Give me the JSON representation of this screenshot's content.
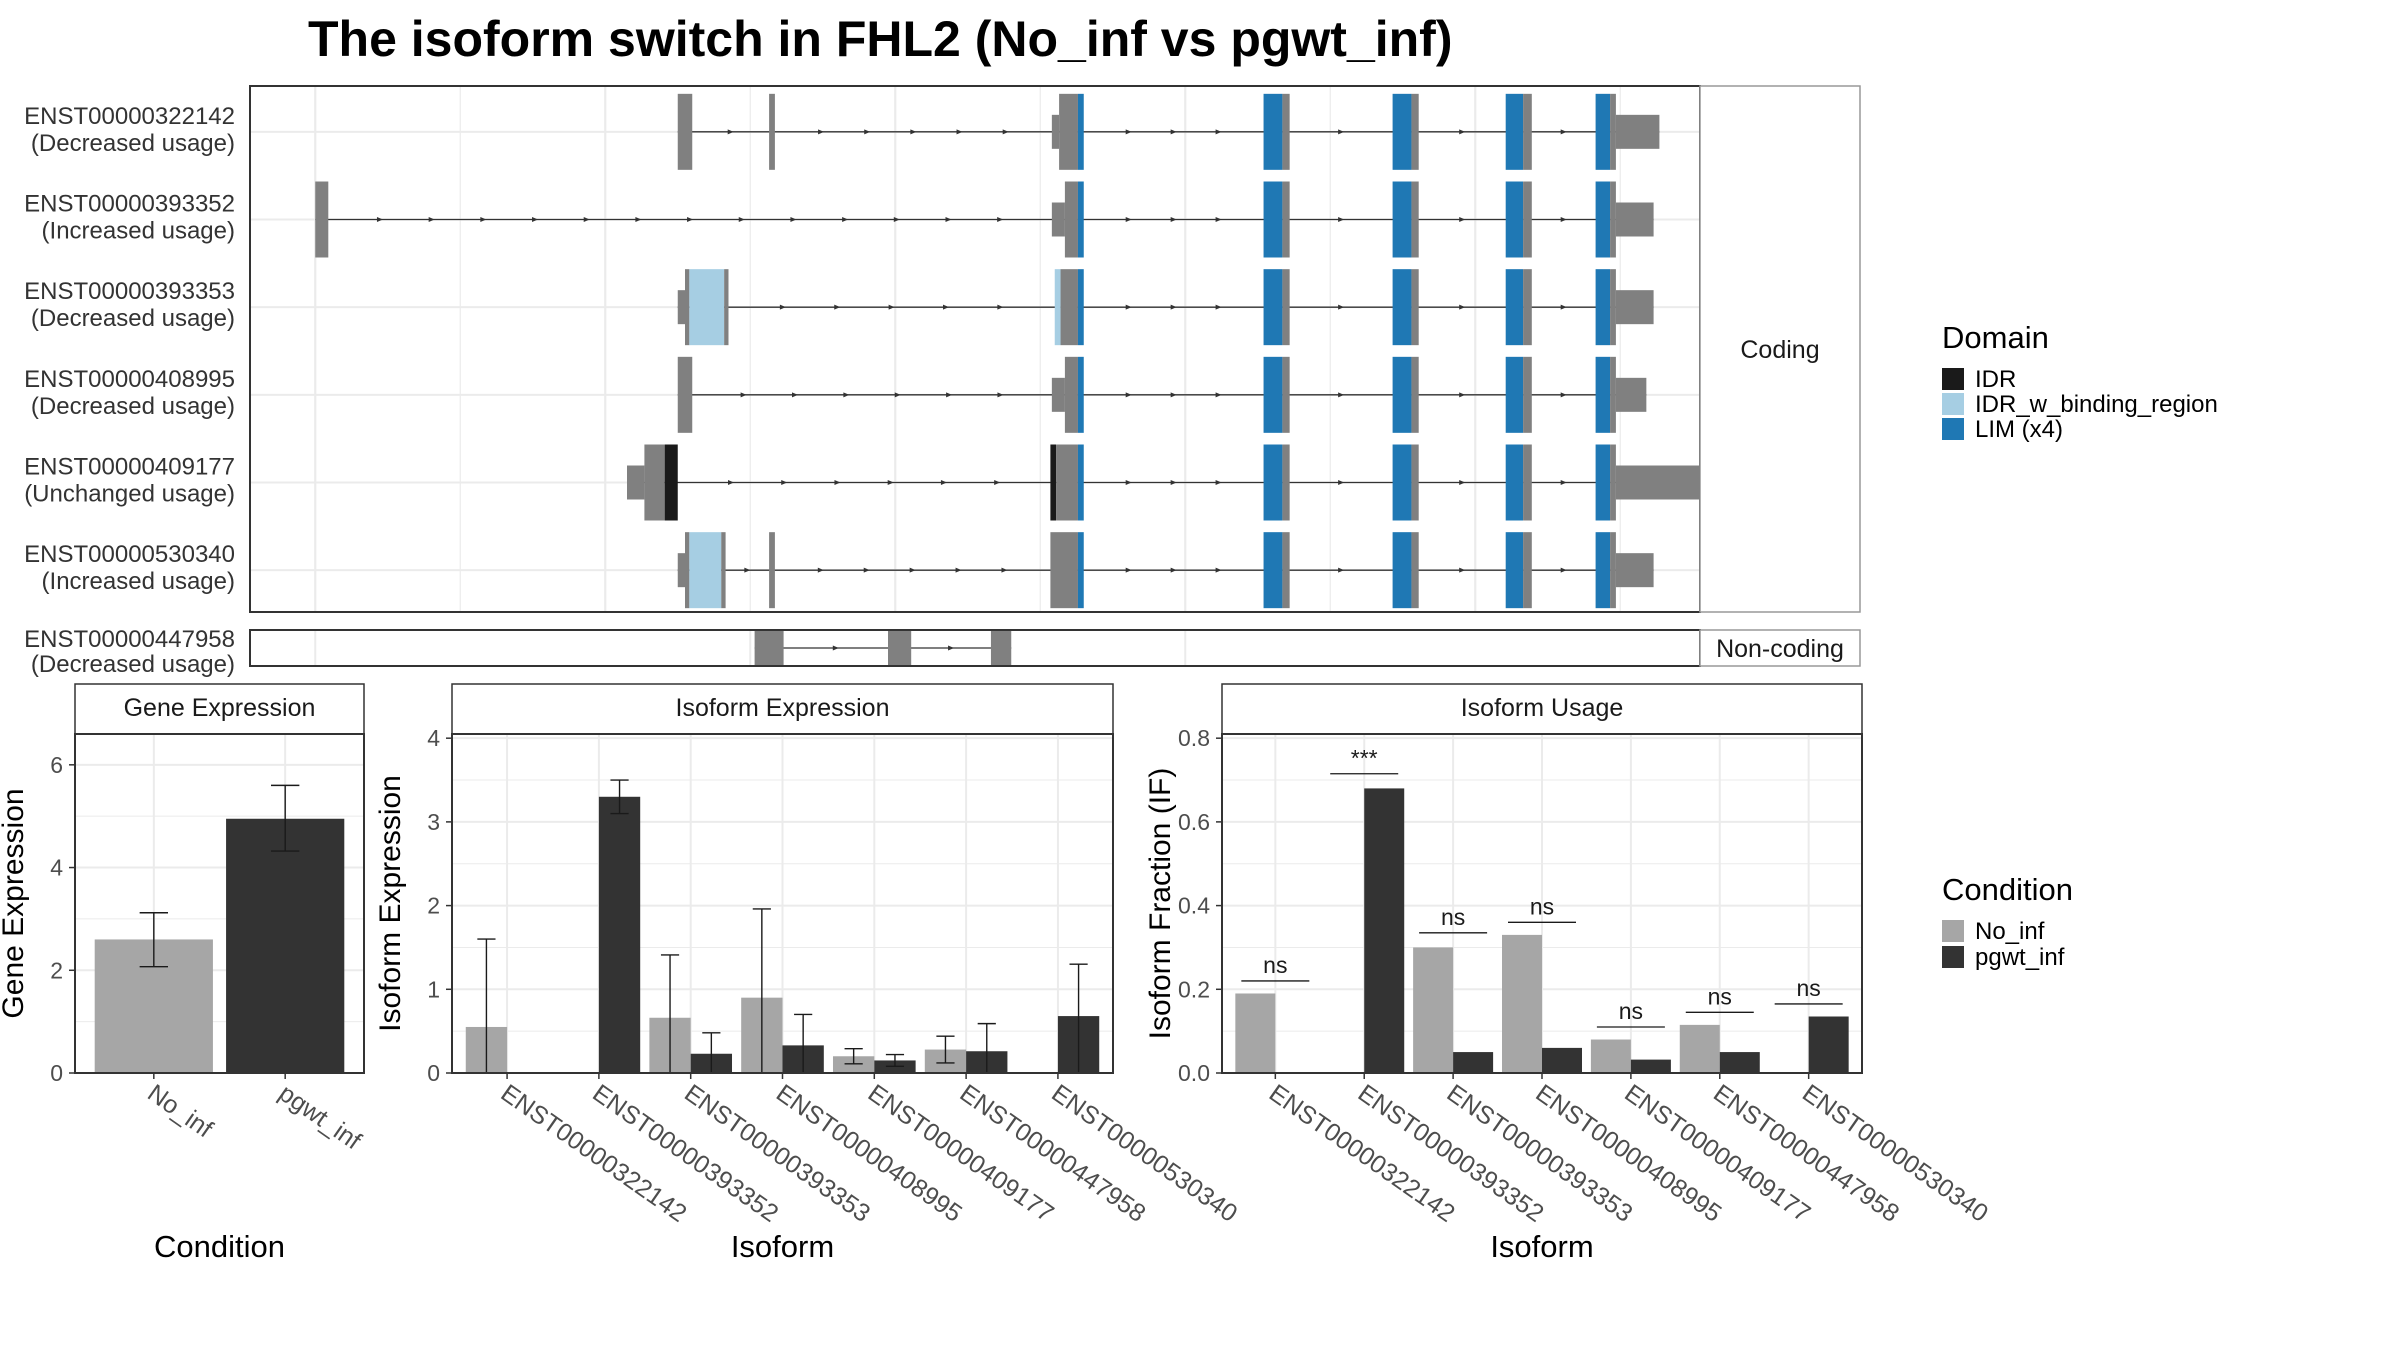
{
  "title": "The isoform switch in FHL2 (No_inf vs pgwt_inf)",
  "colors": {
    "exon": "#808080",
    "IDR": "#1a1a1a",
    "IDR_w_binding_region": "#a6cee3",
    "LIM (x4)": "#1f78b4",
    "No_inf": "#a6a6a6",
    "pgwt_inf": "#333333",
    "grid": "#ebebeb",
    "panel_border": "#333333",
    "strip_border": "#999999"
  },
  "chart_data": [
    {
      "type": "gene-structure",
      "facets": [
        "Coding",
        "Non-coding"
      ],
      "transcripts": [
        {
          "id": "ENST00000322142",
          "usage": "(Decreased usage)",
          "facet": "Coding",
          "exons": [
            [
              0.295,
              0.305,
              "exon",
              "full"
            ],
            [
              0.358,
              0.362,
              "exon",
              "full"
            ],
            [
              0.558,
              0.571,
              "exon",
              "full"
            ],
            [
              0.571,
              0.575,
              "LIM (x4)",
              "full"
            ],
            [
              0.699,
              0.712,
              "LIM (x4)",
              "full"
            ],
            [
              0.712,
              0.717,
              "exon",
              "full"
            ],
            [
              0.788,
              0.801,
              "LIM (x4)",
              "full"
            ],
            [
              0.801,
              0.806,
              "exon",
              "full"
            ],
            [
              0.866,
              0.878,
              "LIM (x4)",
              "full"
            ],
            [
              0.878,
              0.884,
              "exon",
              "full"
            ],
            [
              0.928,
              0.938,
              "LIM (x4)",
              "full"
            ],
            [
              0.938,
              0.942,
              "exon",
              "full"
            ],
            [
              0.942,
              0.972,
              "exon",
              "utr"
            ],
            [
              0.553,
              0.558,
              "exon",
              "utr"
            ]
          ]
        },
        {
          "id": "ENST00000393352",
          "usage": "(Increased usage)",
          "facet": "Coding",
          "exons": [
            [
              0.045,
              0.054,
              "exon",
              "full"
            ],
            [
              0.562,
              0.571,
              "exon",
              "full"
            ],
            [
              0.571,
              0.575,
              "LIM (x4)",
              "full"
            ],
            [
              0.699,
              0.712,
              "LIM (x4)",
              "full"
            ],
            [
              0.712,
              0.717,
              "exon",
              "full"
            ],
            [
              0.788,
              0.801,
              "LIM (x4)",
              "full"
            ],
            [
              0.801,
              0.806,
              "exon",
              "full"
            ],
            [
              0.866,
              0.878,
              "LIM (x4)",
              "full"
            ],
            [
              0.878,
              0.884,
              "exon",
              "full"
            ],
            [
              0.928,
              0.938,
              "LIM (x4)",
              "full"
            ],
            [
              0.938,
              0.942,
              "exon",
              "full"
            ],
            [
              0.942,
              0.968,
              "exon",
              "utr"
            ],
            [
              0.553,
              0.562,
              "exon",
              "utr"
            ]
          ]
        },
        {
          "id": "ENST00000393353",
          "usage": "(Decreased usage)",
          "facet": "Coding",
          "exons": [
            [
              0.295,
              0.3,
              "exon",
              "utr"
            ],
            [
              0.3,
              0.303,
              "exon",
              "full"
            ],
            [
              0.303,
              0.327,
              "IDR_w_binding_region",
              "full"
            ],
            [
              0.327,
              0.33,
              "exon",
              "full"
            ],
            [
              0.555,
              0.559,
              "IDR_w_binding_region",
              "full"
            ],
            [
              0.559,
              0.571,
              "exon",
              "full"
            ],
            [
              0.571,
              0.575,
              "LIM (x4)",
              "full"
            ],
            [
              0.699,
              0.712,
              "LIM (x4)",
              "full"
            ],
            [
              0.712,
              0.717,
              "exon",
              "full"
            ],
            [
              0.788,
              0.801,
              "LIM (x4)",
              "full"
            ],
            [
              0.801,
              0.806,
              "exon",
              "full"
            ],
            [
              0.866,
              0.878,
              "LIM (x4)",
              "full"
            ],
            [
              0.878,
              0.884,
              "exon",
              "full"
            ],
            [
              0.928,
              0.938,
              "LIM (x4)",
              "full"
            ],
            [
              0.938,
              0.942,
              "exon",
              "full"
            ],
            [
              0.942,
              0.968,
              "exon",
              "utr"
            ]
          ]
        },
        {
          "id": "ENST00000408995",
          "usage": "(Decreased usage)",
          "facet": "Coding",
          "exons": [
            [
              0.295,
              0.305,
              "exon",
              "full"
            ],
            [
              0.553,
              0.562,
              "exon",
              "utr"
            ],
            [
              0.562,
              0.571,
              "exon",
              "full"
            ],
            [
              0.571,
              0.575,
              "LIM (x4)",
              "full"
            ],
            [
              0.699,
              0.712,
              "LIM (x4)",
              "full"
            ],
            [
              0.712,
              0.717,
              "exon",
              "full"
            ],
            [
              0.788,
              0.801,
              "LIM (x4)",
              "full"
            ],
            [
              0.801,
              0.806,
              "exon",
              "full"
            ],
            [
              0.866,
              0.878,
              "LIM (x4)",
              "full"
            ],
            [
              0.878,
              0.884,
              "exon",
              "full"
            ],
            [
              0.928,
              0.938,
              "LIM (x4)",
              "full"
            ],
            [
              0.938,
              0.942,
              "exon",
              "full"
            ],
            [
              0.942,
              0.963,
              "exon",
              "utr"
            ]
          ]
        },
        {
          "id": "ENST00000409177",
          "usage": "(Unchanged usage)",
          "facet": "Coding",
          "exons": [
            [
              0.26,
              0.272,
              "exon",
              "utr"
            ],
            [
              0.272,
              0.286,
              "exon",
              "full"
            ],
            [
              0.286,
              0.295,
              "IDR",
              "full"
            ],
            [
              0.552,
              0.556,
              "IDR",
              "full"
            ],
            [
              0.556,
              0.571,
              "exon",
              "full"
            ],
            [
              0.571,
              0.575,
              "LIM (x4)",
              "full"
            ],
            [
              0.699,
              0.712,
              "LIM (x4)",
              "full"
            ],
            [
              0.712,
              0.717,
              "exon",
              "full"
            ],
            [
              0.788,
              0.801,
              "LIM (x4)",
              "full"
            ],
            [
              0.801,
              0.806,
              "exon",
              "full"
            ],
            [
              0.866,
              0.878,
              "LIM (x4)",
              "full"
            ],
            [
              0.878,
              0.884,
              "exon",
              "full"
            ],
            [
              0.928,
              0.938,
              "LIM (x4)",
              "full"
            ],
            [
              0.938,
              0.942,
              "exon",
              "full"
            ],
            [
              0.942,
              1.024,
              "exon",
              "utr"
            ]
          ]
        },
        {
          "id": "ENST00000530340",
          "usage": "(Increased usage)",
          "facet": "Coding",
          "exons": [
            [
              0.295,
              0.3,
              "exon",
              "utr"
            ],
            [
              0.3,
              0.303,
              "exon",
              "full"
            ],
            [
              0.303,
              0.325,
              "IDR_w_binding_region",
              "full"
            ],
            [
              0.325,
              0.328,
              "exon",
              "full"
            ],
            [
              0.358,
              0.362,
              "exon",
              "full"
            ],
            [
              0.552,
              0.571,
              "exon",
              "full"
            ],
            [
              0.571,
              0.575,
              "LIM (x4)",
              "full"
            ],
            [
              0.699,
              0.712,
              "LIM (x4)",
              "full"
            ],
            [
              0.712,
              0.717,
              "exon",
              "full"
            ],
            [
              0.788,
              0.801,
              "LIM (x4)",
              "full"
            ],
            [
              0.801,
              0.806,
              "exon",
              "full"
            ],
            [
              0.866,
              0.878,
              "LIM (x4)",
              "full"
            ],
            [
              0.878,
              0.884,
              "exon",
              "full"
            ],
            [
              0.928,
              0.938,
              "LIM (x4)",
              "full"
            ],
            [
              0.938,
              0.942,
              "exon",
              "full"
            ],
            [
              0.942,
              0.968,
              "exon",
              "utr"
            ]
          ]
        },
        {
          "id": "ENST00000447958",
          "usage": "(Decreased usage)",
          "facet": "Non-coding",
          "exons": [
            [
              0.348,
              0.368,
              "exon",
              "full"
            ],
            [
              0.44,
              0.456,
              "exon",
              "full"
            ],
            [
              0.511,
              0.525,
              "exon",
              "full"
            ]
          ]
        }
      ],
      "legend": {
        "title": "Domain",
        "items": [
          "IDR",
          "IDR_w_binding_region",
          "LIM (x4)"
        ]
      }
    },
    {
      "type": "bar",
      "panel": "Gene Expression",
      "ylabel": "Gene Expression",
      "xlabel": "Condition",
      "ylim": [
        0,
        6.6
      ],
      "yticks": [
        0,
        2,
        4,
        6
      ],
      "categories": [
        "No_inf",
        "pgwt_inf"
      ],
      "values": [
        2.6,
        4.95
      ],
      "errors": [
        [
          2.07,
          3.12
        ],
        [
          4.32,
          5.6
        ]
      ]
    },
    {
      "type": "bar",
      "panel": "Isoform Expression",
      "ylabel": "Isoform Expression",
      "xlabel": "Isoform",
      "ylim": [
        0,
        4.05
      ],
      "yticks": [
        0,
        1,
        2,
        3,
        4
      ],
      "categories": [
        "ENST00000322142",
        "ENST00000393352",
        "ENST00000393353",
        "ENST00000408995",
        "ENST00000409177",
        "ENST00000447958",
        "ENST00000530340"
      ],
      "series": [
        {
          "name": "No_inf",
          "values": [
            0.55,
            0.0,
            0.66,
            0.9,
            0.2,
            0.28,
            0.0
          ],
          "errors": [
            [
              0.0,
              1.6
            ],
            [
              0.0,
              0.0
            ],
            [
              0.0,
              1.41
            ],
            [
              0.0,
              1.96
            ],
            [
              0.11,
              0.29
            ],
            [
              0.12,
              0.44
            ],
            [
              0.0,
              0.0
            ]
          ]
        },
        {
          "name": "pgwt_inf",
          "values": [
            0.0,
            3.3,
            0.23,
            0.33,
            0.15,
            0.26,
            0.68
          ],
          "errors": [
            [
              0.0,
              0.0
            ],
            [
              3.1,
              3.5
            ],
            [
              0.0,
              0.48
            ],
            [
              0.0,
              0.7
            ],
            [
              0.08,
              0.22
            ],
            [
              0.0,
              0.59
            ],
            [
              0.0,
              1.3
            ]
          ]
        }
      ]
    },
    {
      "type": "bar",
      "panel": "Isoform Usage",
      "ylabel": "Isoform Fraction (IF)",
      "xlabel": "Isoform",
      "ylim": [
        0,
        0.81
      ],
      "yticks": [
        "0.0",
        "0.2",
        "0.4",
        "0.6",
        "0.8"
      ],
      "categories": [
        "ENST00000322142",
        "ENST00000393352",
        "ENST00000393353",
        "ENST00000408995",
        "ENST00000409177",
        "ENST00000447958",
        "ENST00000530340"
      ],
      "series": [
        {
          "name": "No_inf",
          "values": [
            0.19,
            0.0,
            0.3,
            0.33,
            0.08,
            0.115,
            0.0
          ]
        },
        {
          "name": "pgwt_inf",
          "values": [
            0.0,
            0.68,
            0.05,
            0.06,
            0.032,
            0.05,
            0.135
          ]
        }
      ],
      "significance": [
        "ns",
        "***",
        "ns",
        "ns",
        "ns",
        "ns",
        "ns"
      ],
      "significance_at": [
        0.22,
        0.715,
        0.335,
        0.36,
        0.11,
        0.145,
        0.165
      ]
    }
  ],
  "condition_legend": {
    "title": "Condition",
    "items": [
      "No_inf",
      "pgwt_inf"
    ]
  }
}
